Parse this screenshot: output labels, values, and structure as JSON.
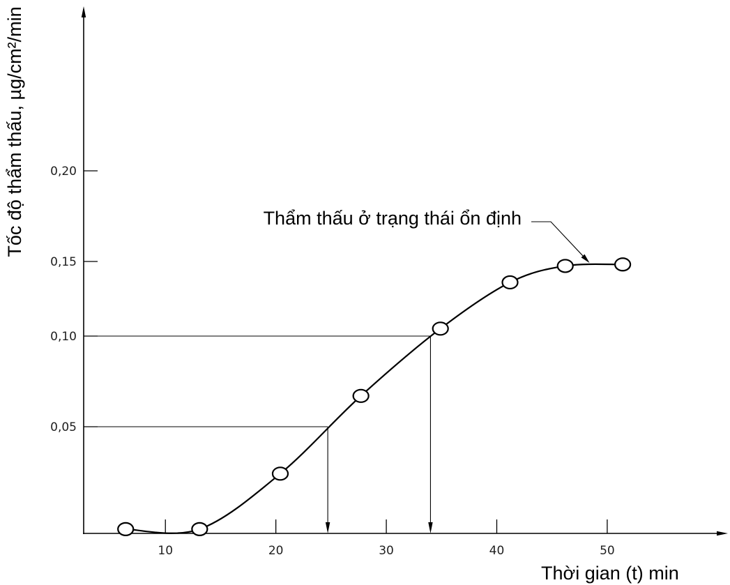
{
  "chart_data": {
    "type": "line",
    "xlabel": "Thời gian (t) min",
    "ylabel": "Tốc độ thẩm thấu, µg/cm²/min",
    "xlim": [
      2.6,
      60.8
    ],
    "ylim": [
      0,
      0.29
    ],
    "x_ticks": [
      10,
      20,
      30,
      40,
      50
    ],
    "x_tick_labels": [
      "10",
      "20",
      "30",
      "40",
      "50"
    ],
    "y_ticks": [
      0.05,
      0.1,
      0.15,
      0.2
    ],
    "y_tick_labels": [
      "0,05",
      "0,10",
      "0,15",
      "0,20"
    ],
    "grid": false,
    "series": [
      {
        "x": [
          6.4,
          13.1,
          20.4,
          27.7,
          34.9,
          41.2,
          46.2,
          51.4
        ],
        "y": [
          0.002,
          0.002,
          0.028,
          0.067,
          0.105,
          0.136,
          0.147,
          0.148
        ],
        "color": "#000000"
      }
    ],
    "guides": [
      {
        "x": 24.7,
        "y": 0.05
      },
      {
        "x": 34.0,
        "y": 0.1
      }
    ],
    "annotations": [
      {
        "text": "Thẩm thấu ở trạng thái ổn định",
        "x": 48.4,
        "y": 0.149
      }
    ]
  }
}
